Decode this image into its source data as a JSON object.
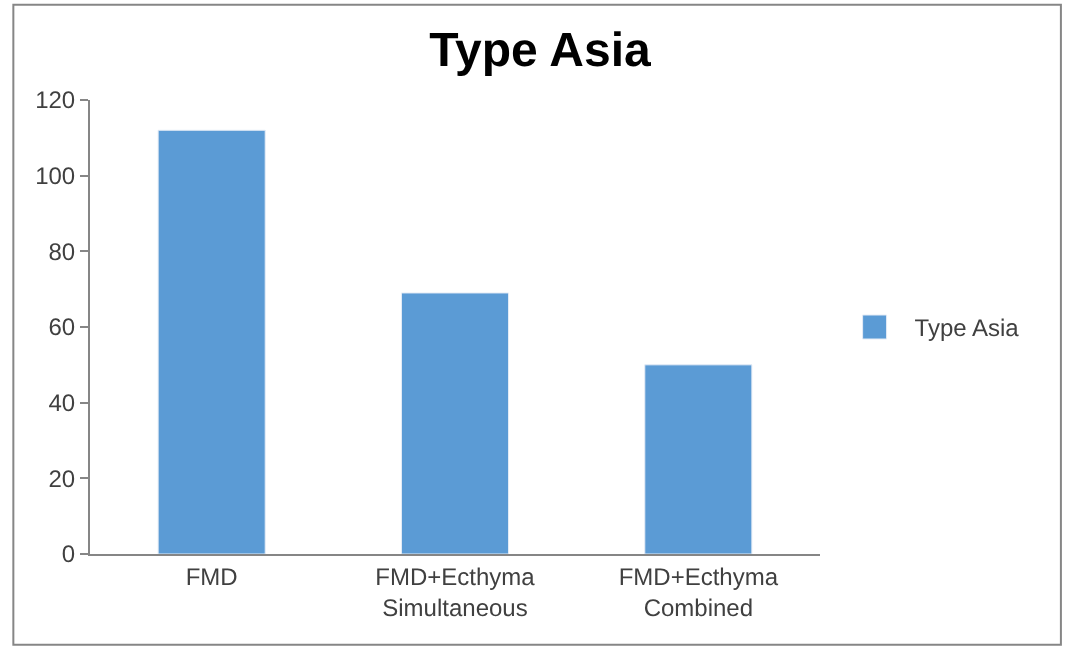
{
  "chart_data": {
    "type": "bar",
    "title": "Type Asia",
    "categories": [
      "FMD",
      "FMD+Ecthyma\nSimultaneous",
      "FMD+Ecthyma\nCombined"
    ],
    "series": [
      {
        "name": "Type Asia",
        "color": "#5b9bd5",
        "values": [
          112,
          69,
          50
        ]
      }
    ],
    "ylim": [
      0,
      120
    ],
    "yticks": [
      0,
      20,
      40,
      60,
      80,
      100,
      120
    ],
    "legend": "right"
  }
}
